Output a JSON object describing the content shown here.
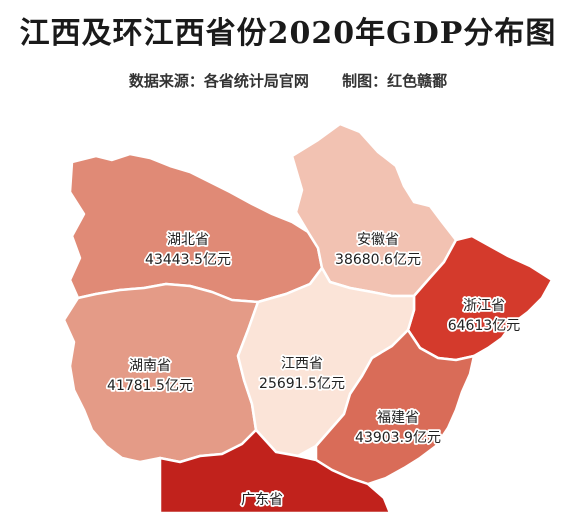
{
  "title": "江西及环江西省份2020年GDP分布图",
  "subtitle": {
    "source": "数据来源：各省统计局官网",
    "author": "制图：红色赣鄱"
  },
  "colors": {
    "hubei": "#e08a76",
    "anhui": "#f2c2b2",
    "zhejiang": "#d43a2c",
    "hunan": "#e49b87",
    "jiangxi": "#fbe4d8",
    "fujian": "#d96c58",
    "guangdong": "#c1221c",
    "background": "#ffffff"
  },
  "provinces": [
    {
      "id": "hubei",
      "name": "湖北省",
      "gdp": "43443.5亿元"
    },
    {
      "id": "anhui",
      "name": "安徽省",
      "gdp": "38680.6亿元"
    },
    {
      "id": "zhejiang",
      "name": "浙江省",
      "gdp": "64613亿元"
    },
    {
      "id": "hunan",
      "name": "湖南省",
      "gdp": "41781.5亿元"
    },
    {
      "id": "jiangxi",
      "name": "江西省",
      "gdp": "25691.5亿元"
    },
    {
      "id": "fujian",
      "name": "福建省",
      "gdp": "43903.9亿元"
    },
    {
      "id": "guangdong",
      "name": "广东省",
      "gdp": ""
    }
  ]
}
